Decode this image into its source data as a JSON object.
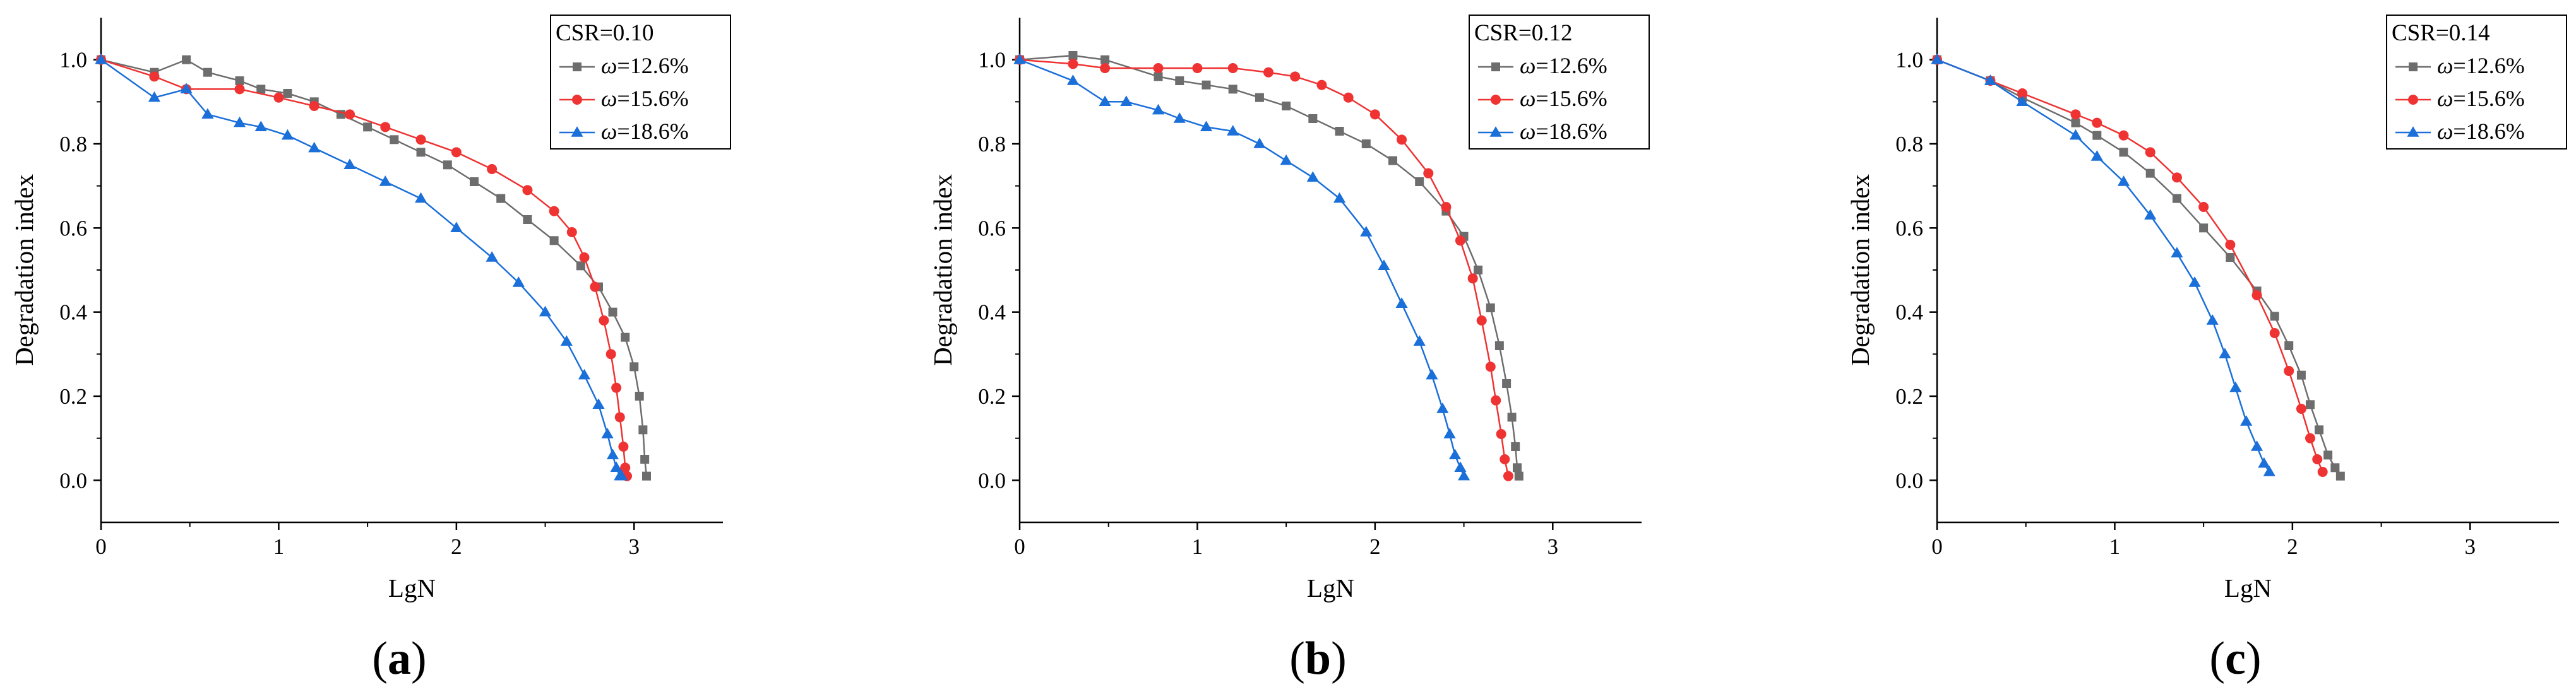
{
  "figure": {
    "colors": {
      "grey": "#6d6d6d",
      "red": "#ef3232",
      "blue": "#1a6fd9"
    }
  },
  "chart_data": [
    {
      "type": "line",
      "panel_label": "a",
      "legend_title": "CSR=0.10",
      "xlabel": "LgN",
      "ylabel": "Degradation index",
      "xlim": [
        0,
        3.5
      ],
      "ylim": [
        -0.1,
        1.1
      ],
      "xticks": [
        "0",
        "1",
        "2",
        "3"
      ],
      "yticks": [
        "0.0",
        "0.2",
        "0.4",
        "0.6",
        "0.8",
        "1.0"
      ],
      "series": [
        {
          "name": "ω=12.6%",
          "symbol": "ω",
          "value": "=12.6%",
          "marker": "square",
          "color": "#6d6d6d",
          "x": [
            0,
            0.3,
            0.48,
            0.6,
            0.78,
            0.9,
            1.05,
            1.2,
            1.35,
            1.5,
            1.65,
            1.8,
            1.95,
            2.1,
            2.25,
            2.4,
            2.55,
            2.7,
            2.8,
            2.88,
            2.95,
            3.0,
            3.03,
            3.05,
            3.06,
            3.07
          ],
          "y": [
            1.0,
            0.97,
            1.0,
            0.97,
            0.95,
            0.93,
            0.92,
            0.9,
            0.87,
            0.84,
            0.81,
            0.78,
            0.75,
            0.71,
            0.67,
            0.62,
            0.57,
            0.51,
            0.46,
            0.4,
            0.34,
            0.27,
            0.2,
            0.12,
            0.05,
            0.01
          ]
        },
        {
          "name": "ω=15.6%",
          "symbol": "ω",
          "value": "=15.6%",
          "marker": "circle",
          "color": "#ef3232",
          "x": [
            0,
            0.3,
            0.48,
            0.78,
            1.0,
            1.2,
            1.4,
            1.6,
            1.8,
            2.0,
            2.2,
            2.4,
            2.55,
            2.65,
            2.72,
            2.78,
            2.83,
            2.87,
            2.9,
            2.92,
            2.94,
            2.95,
            2.96
          ],
          "y": [
            1.0,
            0.96,
            0.93,
            0.93,
            0.91,
            0.89,
            0.87,
            0.84,
            0.81,
            0.78,
            0.74,
            0.69,
            0.64,
            0.59,
            0.53,
            0.46,
            0.38,
            0.3,
            0.22,
            0.15,
            0.08,
            0.03,
            0.01
          ]
        },
        {
          "name": "ω=18.6%",
          "symbol": "ω",
          "value": "=18.6%",
          "marker": "triangle",
          "color": "#1a6fd9",
          "x": [
            0,
            0.3,
            0.48,
            0.6,
            0.78,
            0.9,
            1.05,
            1.2,
            1.4,
            1.6,
            1.8,
            2.0,
            2.2,
            2.35,
            2.5,
            2.62,
            2.72,
            2.8,
            2.85,
            2.88,
            2.9,
            2.92,
            2.93
          ],
          "y": [
            1.0,
            0.91,
            0.93,
            0.87,
            0.85,
            0.84,
            0.82,
            0.79,
            0.75,
            0.71,
            0.67,
            0.6,
            0.53,
            0.47,
            0.4,
            0.33,
            0.25,
            0.18,
            0.11,
            0.06,
            0.03,
            0.01,
            0.01
          ]
        }
      ]
    },
    {
      "type": "line",
      "panel_label": "b",
      "legend_title": "CSR=0.12",
      "xlabel": "LgN",
      "ylabel": "Degradation index",
      "xlim": [
        0,
        3.5
      ],
      "ylim": [
        -0.1,
        1.1
      ],
      "xticks": [
        "0",
        "1",
        "2",
        "3"
      ],
      "yticks": [
        "0.0",
        "0.2",
        "0.4",
        "0.6",
        "0.8",
        "1.0"
      ],
      "series": [
        {
          "name": "ω=12.6%",
          "symbol": "ω",
          "value": "=12.6%",
          "marker": "square",
          "color": "#6d6d6d",
          "x": [
            0,
            0.3,
            0.48,
            0.78,
            0.9,
            1.05,
            1.2,
            1.35,
            1.5,
            1.65,
            1.8,
            1.95,
            2.1,
            2.25,
            2.4,
            2.5,
            2.58,
            2.65,
            2.7,
            2.74,
            2.77,
            2.79,
            2.8,
            2.81
          ],
          "y": [
            1.0,
            1.01,
            1.0,
            0.96,
            0.95,
            0.94,
            0.93,
            0.91,
            0.89,
            0.86,
            0.83,
            0.8,
            0.76,
            0.71,
            0.64,
            0.58,
            0.5,
            0.41,
            0.32,
            0.23,
            0.15,
            0.08,
            0.03,
            0.01
          ]
        },
        {
          "name": "ω=15.6%",
          "symbol": "ω",
          "value": "=15.6%",
          "marker": "circle",
          "color": "#ef3232",
          "x": [
            0,
            0.3,
            0.48,
            0.78,
            1.0,
            1.2,
            1.4,
            1.55,
            1.7,
            1.85,
            2.0,
            2.15,
            2.3,
            2.4,
            2.48,
            2.55,
            2.6,
            2.65,
            2.68,
            2.71,
            2.73,
            2.75
          ],
          "y": [
            1.0,
            0.99,
            0.98,
            0.98,
            0.98,
            0.98,
            0.97,
            0.96,
            0.94,
            0.91,
            0.87,
            0.81,
            0.73,
            0.65,
            0.57,
            0.48,
            0.38,
            0.27,
            0.19,
            0.11,
            0.05,
            0.01
          ]
        },
        {
          "name": "ω=18.6%",
          "symbol": "ω",
          "value": "=18.6%",
          "marker": "triangle",
          "color": "#1a6fd9",
          "x": [
            0,
            0.3,
            0.48,
            0.6,
            0.78,
            0.9,
            1.05,
            1.2,
            1.35,
            1.5,
            1.65,
            1.8,
            1.95,
            2.05,
            2.15,
            2.25,
            2.32,
            2.38,
            2.42,
            2.45,
            2.48,
            2.5
          ],
          "y": [
            1.0,
            0.95,
            0.9,
            0.9,
            0.88,
            0.86,
            0.84,
            0.83,
            0.8,
            0.76,
            0.72,
            0.67,
            0.59,
            0.51,
            0.42,
            0.33,
            0.25,
            0.17,
            0.11,
            0.06,
            0.03,
            0.01
          ]
        }
      ]
    },
    {
      "type": "line",
      "panel_label": "c",
      "legend_title": "CSR=0.14",
      "xlabel": "LgN",
      "ylabel": "Degradation index",
      "xlim": [
        0,
        3.5
      ],
      "ylim": [
        -0.1,
        1.1
      ],
      "xticks": [
        "0",
        "1",
        "2",
        "3"
      ],
      "yticks": [
        "0.0",
        "0.2",
        "0.4",
        "0.6",
        "0.8",
        "1.0"
      ],
      "series": [
        {
          "name": "ω=12.6%",
          "symbol": "ω",
          "value": "=12.6%",
          "marker": "square",
          "color": "#6d6d6d",
          "x": [
            0,
            0.3,
            0.48,
            0.78,
            0.9,
            1.05,
            1.2,
            1.35,
            1.5,
            1.65,
            1.8,
            1.9,
            1.98,
            2.05,
            2.1,
            2.15,
            2.2,
            2.24,
            2.27
          ],
          "y": [
            1.0,
            0.95,
            0.91,
            0.85,
            0.82,
            0.78,
            0.73,
            0.67,
            0.6,
            0.53,
            0.45,
            0.39,
            0.32,
            0.25,
            0.18,
            0.12,
            0.06,
            0.03,
            0.01
          ]
        },
        {
          "name": "ω=15.6%",
          "symbol": "ω",
          "value": "=15.6%",
          "marker": "circle",
          "color": "#ef3232",
          "x": [
            0,
            0.3,
            0.48,
            0.78,
            0.9,
            1.05,
            1.2,
            1.35,
            1.5,
            1.65,
            1.8,
            1.9,
            1.98,
            2.05,
            2.1,
            2.14,
            2.17
          ],
          "y": [
            1.0,
            0.95,
            0.92,
            0.87,
            0.85,
            0.82,
            0.78,
            0.72,
            0.65,
            0.56,
            0.44,
            0.35,
            0.26,
            0.17,
            0.1,
            0.05,
            0.02
          ]
        },
        {
          "name": "ω=18.6%",
          "symbol": "ω",
          "value": "=18.6%",
          "marker": "triangle",
          "color": "#1a6fd9",
          "x": [
            0,
            0.3,
            0.48,
            0.78,
            0.9,
            1.05,
            1.2,
            1.35,
            1.45,
            1.55,
            1.62,
            1.68,
            1.74,
            1.8,
            1.84,
            1.87
          ],
          "y": [
            1.0,
            0.95,
            0.9,
            0.82,
            0.77,
            0.71,
            0.63,
            0.54,
            0.47,
            0.38,
            0.3,
            0.22,
            0.14,
            0.08,
            0.04,
            0.02
          ]
        }
      ]
    }
  ]
}
